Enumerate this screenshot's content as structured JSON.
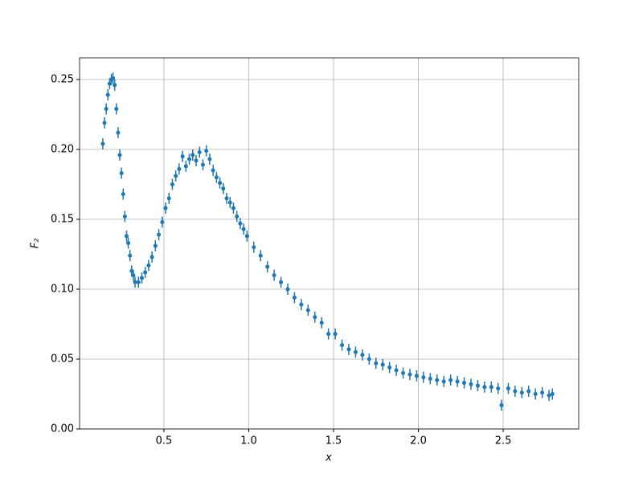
{
  "chart_data": {
    "type": "errorbar",
    "xlabel": "x",
    "ylabel": "F₂",
    "xlim": [
      0.003,
      2.945
    ],
    "ylim": [
      0,
      0.2655
    ],
    "xticks": [
      {
        "value": 0.5,
        "label": "0.5"
      },
      {
        "value": 1.0,
        "label": "1.0"
      },
      {
        "value": 1.5,
        "label": "1.5"
      },
      {
        "value": 2.0,
        "label": "2.0"
      },
      {
        "value": 2.5,
        "label": "2.5"
      }
    ],
    "yticks": [
      {
        "value": 0,
        "label": "0.00"
      },
      {
        "value": 0.05,
        "label": "0.05"
      },
      {
        "value": 0.1,
        "label": "0.10"
      },
      {
        "value": 0.15,
        "label": "0.15"
      },
      {
        "value": 0.2,
        "label": "0.20"
      },
      {
        "value": 0.25,
        "label": "0.25"
      }
    ],
    "grid": true,
    "color": "#1f77b4",
    "yerr": 0.004,
    "x": [
      0.14,
      0.15,
      0.16,
      0.17,
      0.18,
      0.19,
      0.2,
      0.21,
      0.22,
      0.23,
      0.24,
      0.25,
      0.26,
      0.27,
      0.28,
      0.29,
      0.3,
      0.31,
      0.32,
      0.33,
      0.35,
      0.37,
      0.39,
      0.41,
      0.43,
      0.45,
      0.47,
      0.49,
      0.51,
      0.53,
      0.55,
      0.57,
      0.59,
      0.61,
      0.63,
      0.65,
      0.67,
      0.69,
      0.71,
      0.73,
      0.75,
      0.77,
      0.79,
      0.81,
      0.83,
      0.85,
      0.87,
      0.89,
      0.91,
      0.93,
      0.95,
      0.97,
      0.99,
      1.03,
      1.07,
      1.11,
      1.15,
      1.19,
      1.23,
      1.27,
      1.31,
      1.35,
      1.39,
      1.43,
      1.47,
      1.51,
      1.55,
      1.59,
      1.63,
      1.67,
      1.71,
      1.75,
      1.79,
      1.83,
      1.87,
      1.91,
      1.95,
      1.99,
      2.03,
      2.07,
      2.11,
      2.15,
      2.19,
      2.23,
      2.27,
      2.31,
      2.35,
      2.39,
      2.43,
      2.47,
      2.49,
      2.53,
      2.57,
      2.61,
      2.65,
      2.69,
      2.73,
      2.77,
      2.79
    ],
    "values": [
      0.204,
      0.219,
      0.229,
      0.239,
      0.247,
      0.25,
      0.251,
      0.246,
      0.229,
      0.212,
      0.196,
      0.183,
      0.168,
      0.152,
      0.138,
      0.133,
      0.124,
      0.113,
      0.11,
      0.105,
      0.105,
      0.108,
      0.112,
      0.117,
      0.123,
      0.131,
      0.139,
      0.148,
      0.158,
      0.165,
      0.175,
      0.181,
      0.186,
      0.195,
      0.188,
      0.193,
      0.196,
      0.192,
      0.198,
      0.189,
      0.199,
      0.193,
      0.185,
      0.18,
      0.176,
      0.172,
      0.165,
      0.162,
      0.158,
      0.152,
      0.147,
      0.143,
      0.138,
      0.13,
      0.124,
      0.116,
      0.11,
      0.105,
      0.1,
      0.094,
      0.089,
      0.085,
      0.08,
      0.076,
      0.068,
      0.068,
      0.06,
      0.057,
      0.055,
      0.053,
      0.05,
      0.047,
      0.046,
      0.044,
      0.042,
      0.04,
      0.039,
      0.038,
      0.037,
      0.036,
      0.035,
      0.034,
      0.035,
      0.034,
      0.033,
      0.032,
      0.031,
      0.03,
      0.03,
      0.029,
      0.017,
      0.029,
      0.027,
      0.026,
      0.027,
      0.025,
      0.026,
      0.024,
      0.025
    ]
  }
}
